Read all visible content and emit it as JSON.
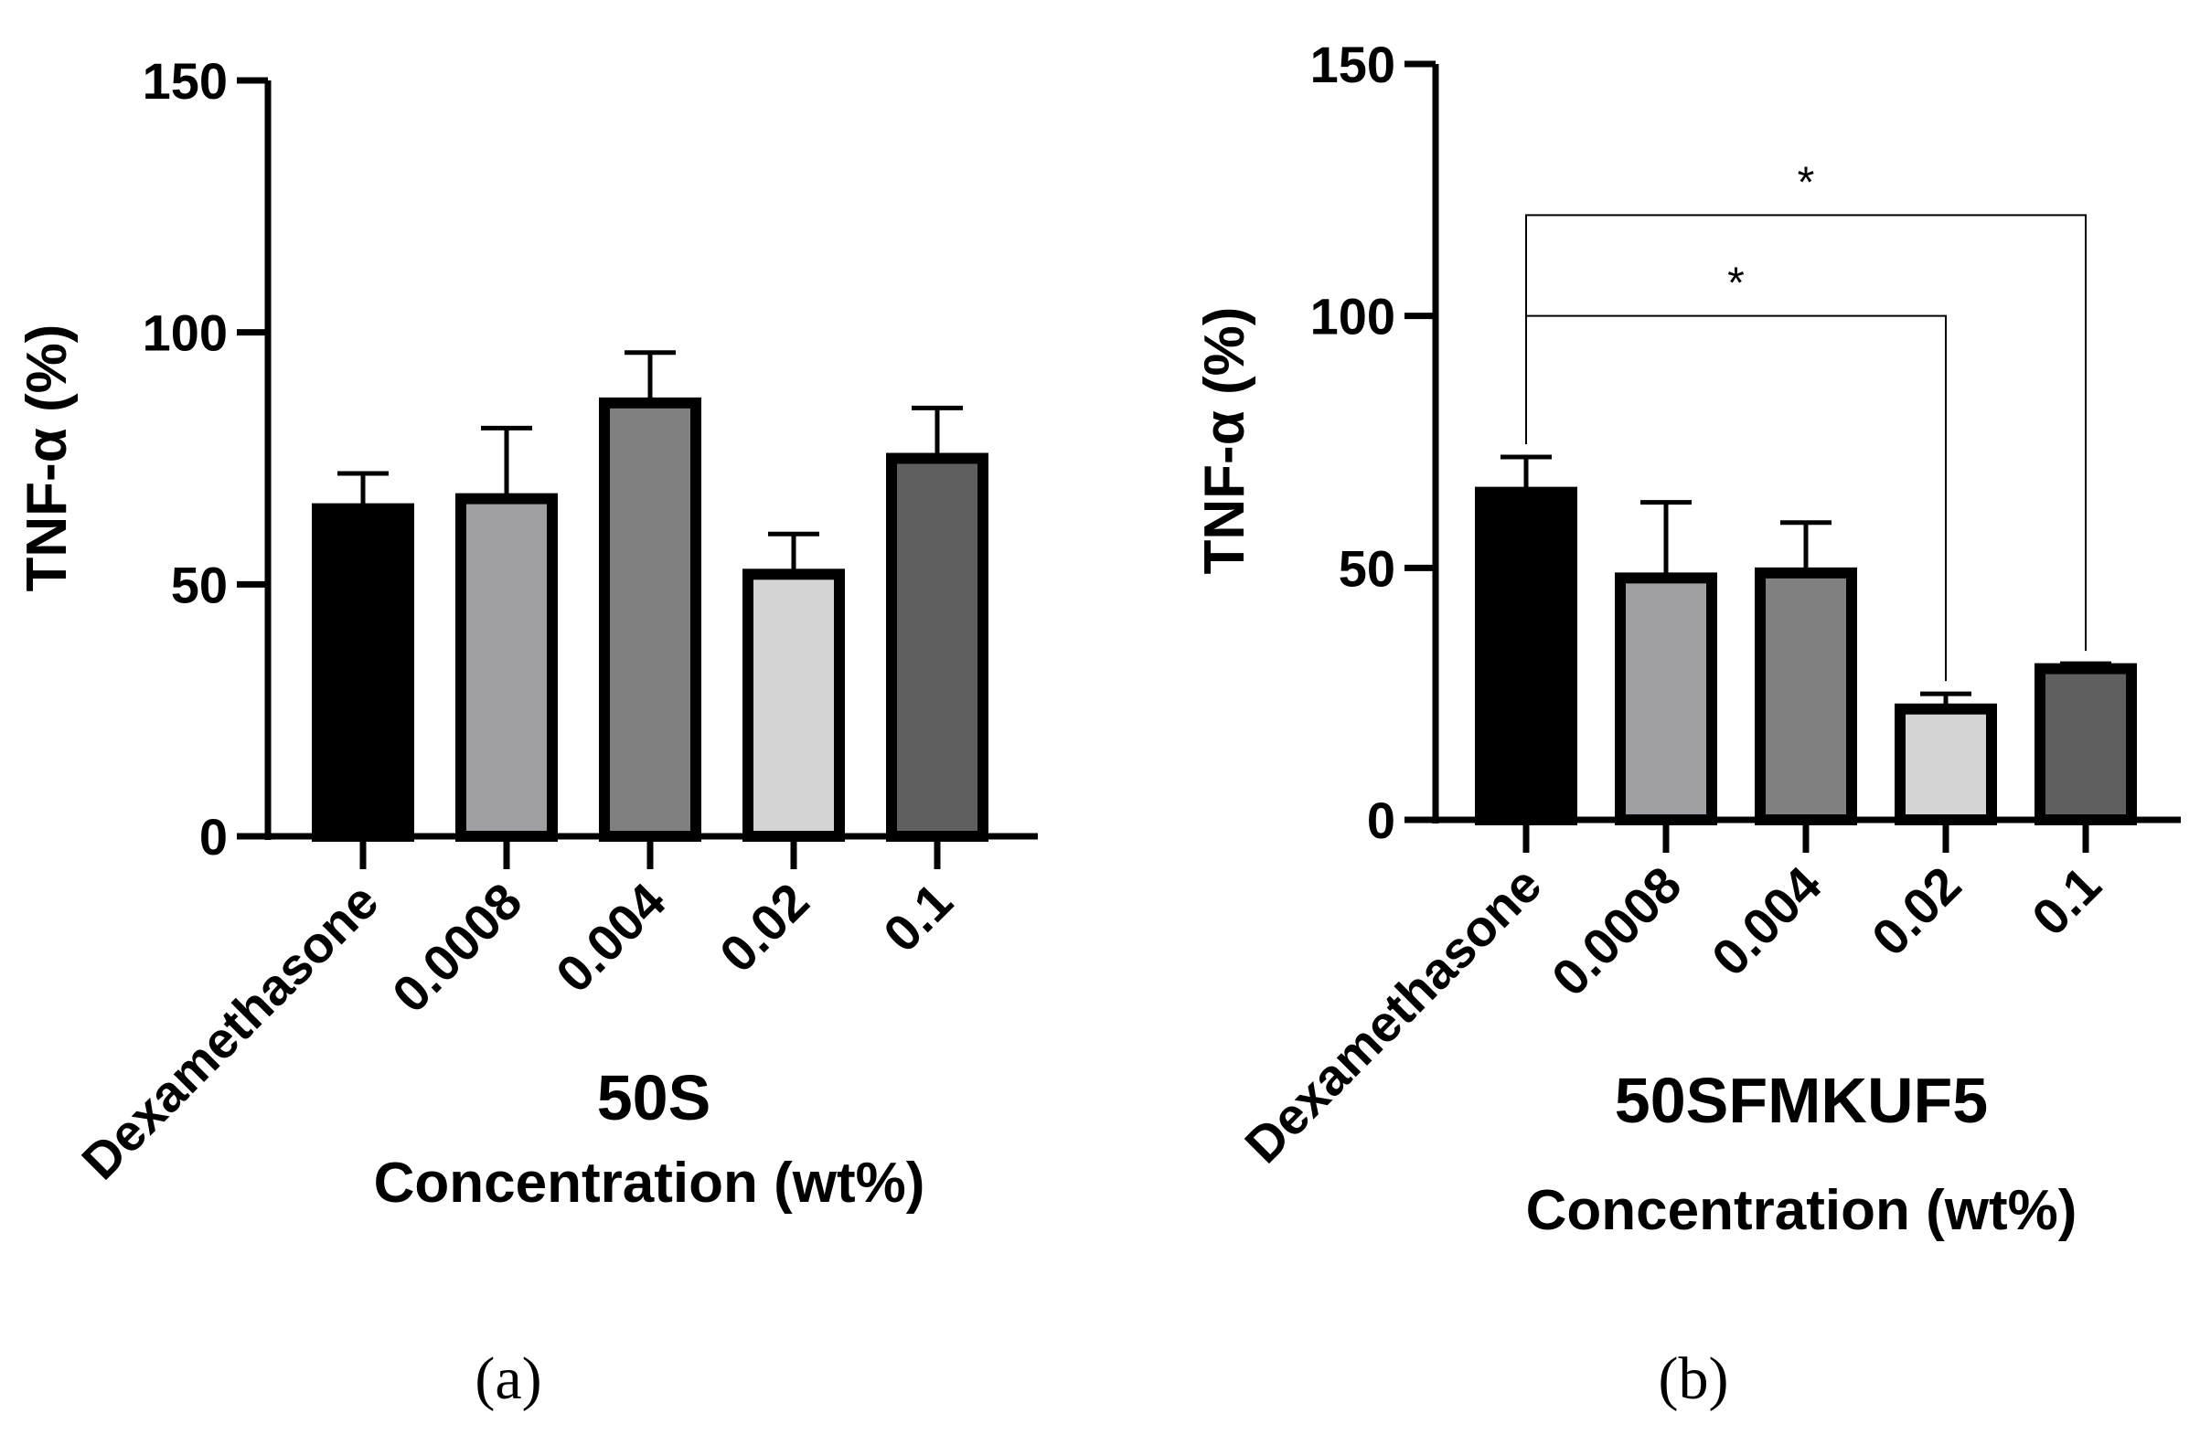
{
  "chart_data": [
    {
      "type": "bar",
      "panel": "(a)",
      "title": "50S",
      "xlabel": "Concentration (wt%)",
      "ylabel": "TNF-α (%)",
      "ylim": [
        0,
        150
      ],
      "yticks": [
        0,
        50,
        100,
        150
      ],
      "ytick_labels": [
        "0",
        "50",
        "100",
        "150"
      ],
      "categories": [
        "Dexamethasone",
        "0.0008",
        "0.004",
        "0.02",
        "0.1"
      ],
      "values": [
        65,
        67,
        86,
        52,
        75
      ],
      "errors": [
        7,
        14,
        10,
        8,
        10
      ],
      "colors": [
        "#000000",
        "#a0a0a4",
        "#808080",
        "#d4d4d4",
        "#5f5f5f"
      ],
      "significance": []
    },
    {
      "type": "bar",
      "panel": "(b)",
      "title": "50SFMKUF5",
      "xlabel": "Concentration (wt%)",
      "ylabel": "TNF-α (%)",
      "ylim": [
        0,
        150
      ],
      "yticks": [
        0,
        50,
        100,
        150
      ],
      "ytick_labels": [
        "0",
        "50",
        "100",
        "150"
      ],
      "categories": [
        "Dexamethasone",
        "0.0008",
        "0.004",
        "0.02",
        "0.1"
      ],
      "values": [
        65,
        48,
        49,
        22,
        30
      ],
      "errors": [
        7,
        15,
        10,
        3,
        1
      ],
      "colors": [
        "#000000",
        "#a0a0a4",
        "#808080",
        "#d4d4d4",
        "#5f5f5f"
      ],
      "significance": [
        {
          "from": 0,
          "to": 3,
          "level": 100,
          "label": "*"
        },
        {
          "from": 0,
          "to": 4,
          "level": 120,
          "label": "*"
        }
      ]
    }
  ]
}
